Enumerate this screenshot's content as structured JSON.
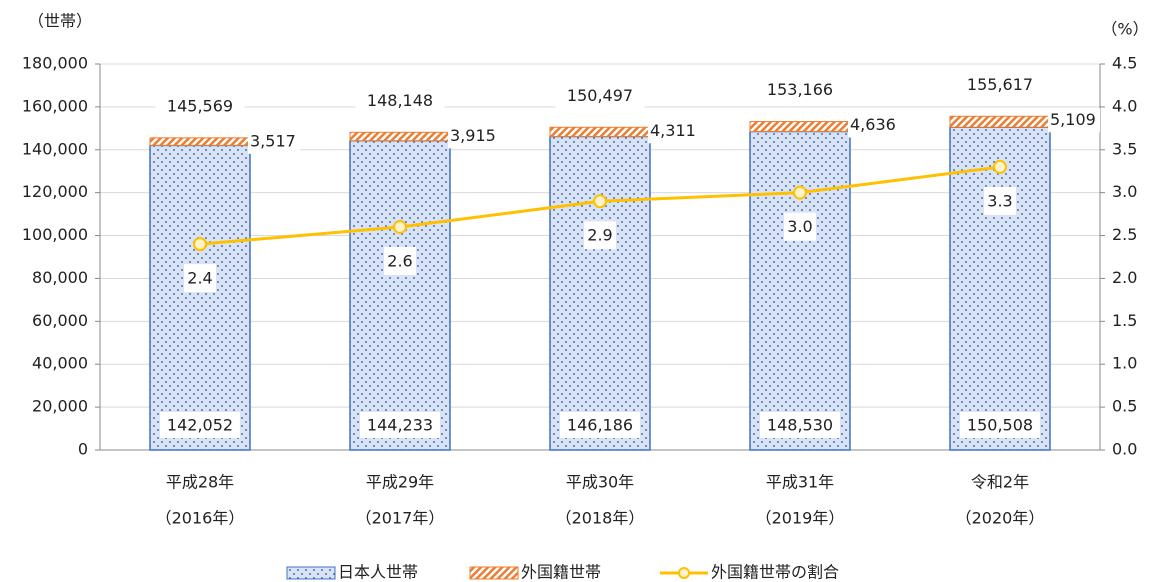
{
  "chart_data": {
    "type": "bar_line",
    "y_label": "（世帯）",
    "y2_label": "（%）",
    "categories": [
      [
        "平成28年",
        "（2016年）"
      ],
      [
        "平成29年",
        "（2017年）"
      ],
      [
        "平成30年",
        "（2018年）"
      ],
      [
        "平成31年",
        "（2019年）"
      ],
      [
        "令和2年",
        "（2020年）"
      ]
    ],
    "series": [
      {
        "name": "日本人世帯",
        "color": "#4472c4",
        "fill": "#dae3f3",
        "values": [
          142052,
          144233,
          146186,
          148530,
          150508
        ],
        "value_labels": [
          "142,052",
          "144,233",
          "146,186",
          "148,530",
          "150,508"
        ]
      },
      {
        "name": "外国籍世帯",
        "color": "#ed7d31",
        "values": [
          3517,
          3915,
          4311,
          4636,
          5109
        ],
        "value_labels": [
          "3,517",
          "3,915",
          "4,311",
          "4,636",
          "5,109"
        ]
      },
      {
        "name": "外国籍世帯の割合",
        "color": "#ffc000",
        "axis": "y2",
        "values": [
          2.4,
          2.6,
          2.9,
          3.0,
          3.3
        ],
        "value_labels": [
          "2.4",
          "2.6",
          "2.9",
          "3.0",
          "3.3"
        ]
      }
    ],
    "total_labels": [
      "145,569",
      "148,148",
      "150,497",
      "153,166",
      "155,617"
    ],
    "ylim": [
      0,
      180000
    ],
    "yticks": [
      0,
      {
        "value": 20000,
        "label": "20,000"
      },
      {
        "value": 40000,
        "label": "40,000"
      },
      {
        "value": 60000,
        "label": "60,000"
      },
      {
        "value": 80000,
        "label": "80,000"
      },
      {
        "value": 100000,
        "label": "100,000"
      },
      {
        "value": 120000,
        "label": "120,000"
      },
      {
        "value": 140000,
        "label": "140,000"
      },
      {
        "value": 160000,
        "label": "160,000"
      },
      {
        "value": 180000,
        "label": "180,000"
      }
    ],
    "y2lim": [
      0,
      4.5
    ],
    "y2ticks": [
      {
        "value": 0,
        "label": "0.0"
      },
      0.5,
      {
        "value": 1,
        "label": "1.0"
      },
      1.5,
      {
        "value": 2,
        "label": "2.0"
      },
      2.5,
      {
        "value": 3,
        "label": "3.0"
      },
      3.5,
      {
        "value": 4,
        "label": "4.0"
      },
      4.5
    ],
    "grid": true,
    "legend": "bottom"
  }
}
